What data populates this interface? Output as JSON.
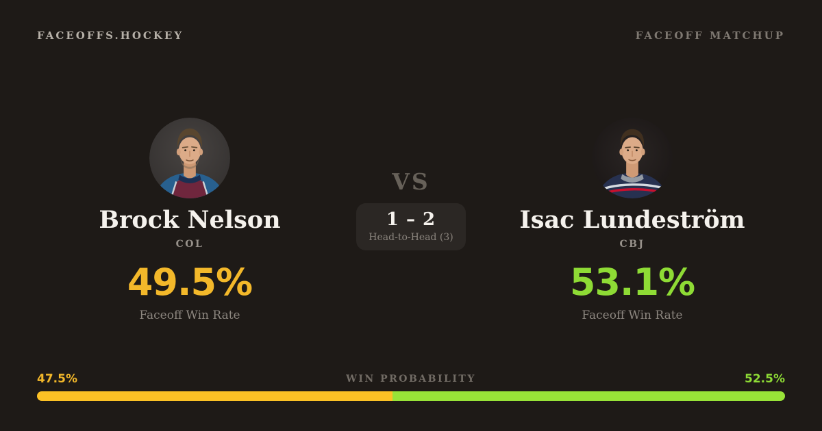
{
  "header": {
    "brand": "FACEOFFS.HOCKEY",
    "page_label": "FACEOFF MATCHUP"
  },
  "players": {
    "left": {
      "name": "Brock Nelson",
      "team": "COL",
      "win_rate": "49.5%",
      "win_rate_label": "Faceoff Win Rate",
      "win_probability_label": "47.5%",
      "win_probability_value": 47.5,
      "accent_color": "#f3b82a"
    },
    "right": {
      "name": "Isac Lundeström",
      "team": "CBJ",
      "win_rate": "53.1%",
      "win_rate_label": "Faceoff Win Rate",
      "win_probability_label": "52.5%",
      "win_probability_value": 52.5,
      "accent_color": "#8edb35"
    }
  },
  "matchup": {
    "vs_label": "VS",
    "head_to_head_score": "1 – 2",
    "head_to_head_label": "Head-to-Head (3)"
  },
  "win_probability": {
    "title": "WIN PROBABILITY"
  },
  "colors": {
    "background": "#1e1a17",
    "amber_bar": "#fcc125",
    "green_bar": "#98e338",
    "text_primary": "#f5f2ed",
    "text_muted": "#8d8780"
  }
}
